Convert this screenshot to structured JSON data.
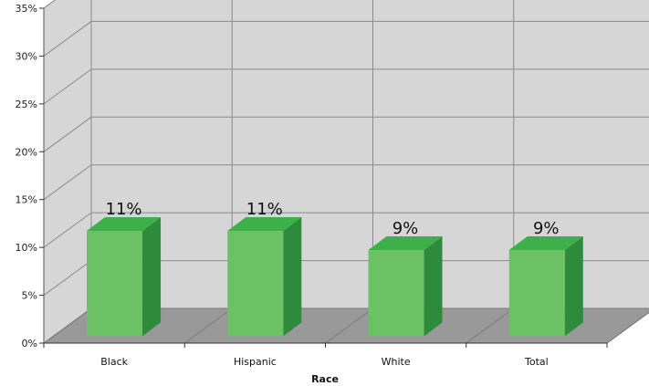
{
  "chart_data": {
    "type": "bar",
    "style": "3d-column",
    "categories": [
      "Black",
      "Hispanic",
      "White",
      "Total"
    ],
    "values": [
      11,
      11,
      9,
      9
    ],
    "value_labels": [
      "11%",
      "11%",
      "9%",
      "9%"
    ],
    "title": "",
    "xlabel": "Race",
    "ylabel": "",
    "ylim": [
      0,
      35
    ],
    "yticks": [
      0,
      5,
      10,
      15,
      20,
      25,
      30,
      35
    ],
    "ytick_labels": [
      "0%",
      "5%",
      "10%",
      "15%",
      "20%",
      "25%",
      "30%",
      "35%"
    ],
    "grid": true,
    "legend": "none",
    "colors": {
      "bar_front": "#6cc164",
      "bar_top": "#3db04a",
      "bar_side": "#2f8b3c",
      "wall": "#d6d6d6",
      "floor": "#999999",
      "grid": "#8a8a8a"
    }
  }
}
